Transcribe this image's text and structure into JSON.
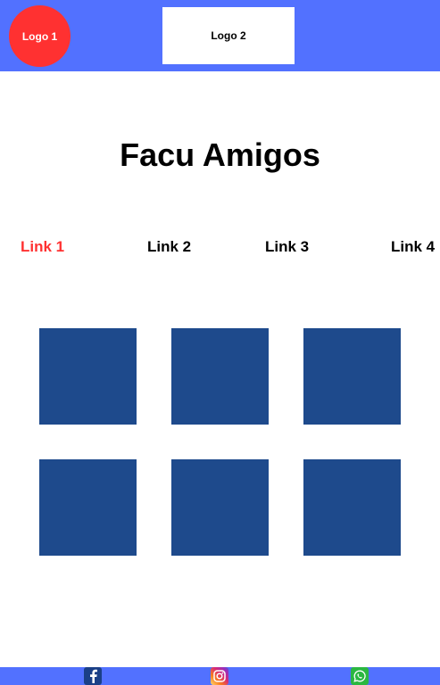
{
  "header": {
    "logo1_text": "Logo 1",
    "logo2_text": "Logo 2"
  },
  "main": {
    "title": "Facu Amigos",
    "nav_links": [
      {
        "label": "Link 1",
        "active": true
      },
      {
        "label": "Link 2",
        "active": false
      },
      {
        "label": "Link 3",
        "active": false
      },
      {
        "label": "Link 4",
        "active": false
      }
    ],
    "tiles_count": 6
  },
  "footer": {
    "social": [
      {
        "icon": "facebook-icon"
      },
      {
        "icon": "instagram-icon"
      },
      {
        "icon": "whatsapp-icon"
      }
    ]
  },
  "colors": {
    "header_bg": "#5271ff",
    "logo1_bg": "#ff3131",
    "active_link": "#ff3131",
    "tile": "#1e4a8c",
    "footer_bg": "#5271ff"
  }
}
